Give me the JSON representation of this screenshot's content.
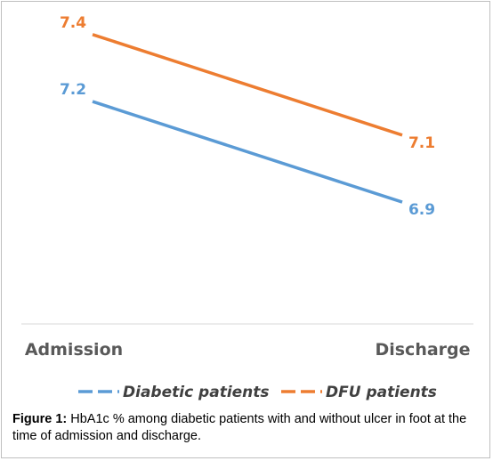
{
  "chart_data": {
    "type": "line",
    "categories": [
      "Admission",
      "Discharge"
    ],
    "series": [
      {
        "name": "Diabetic patients",
        "values": [
          7.2,
          6.9
        ],
        "color": "#5b9bd5"
      },
      {
        "name": "DFU patients",
        "values": [
          7.4,
          7.1
        ],
        "color": "#ed7d31"
      }
    ],
    "ylim": [
      6.6,
      7.45
    ],
    "grid": false,
    "legend": "bottom"
  },
  "caption": {
    "label": "Figure 1:",
    "text": " HbA1c % among diabetic patients with and without ulcer in foot at the time of admission and discharge."
  }
}
